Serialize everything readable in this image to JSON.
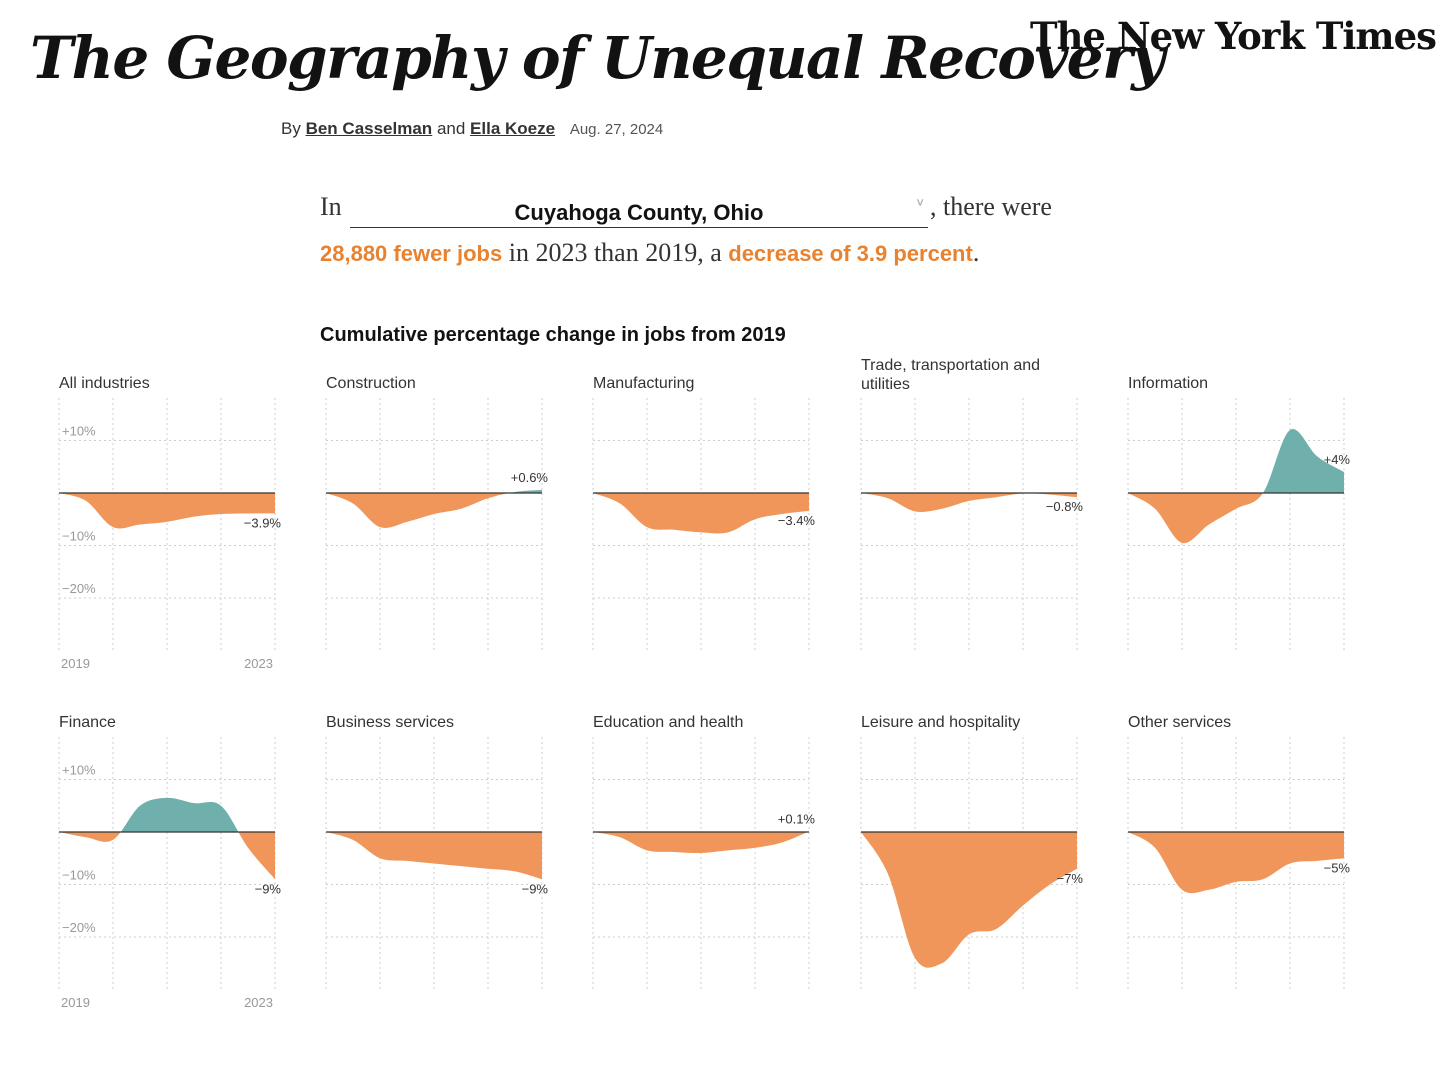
{
  "header": {
    "headline": "The Geography of Unequal Recovery",
    "masthead": "The New York Times",
    "byline_prefix": "By",
    "author1": "Ben Casselman",
    "byline_and": "and",
    "author2": "Ella Koeze",
    "date": "Aug. 27, 2024"
  },
  "lede": {
    "in_text": "In",
    "county": "Cuyahoga County, Ohio",
    "chevron": "˅",
    "after_select": ", there were",
    "jobs_highlight": "28,880 fewer jobs",
    "middle": " in 2023 than 2019, a ",
    "pct_highlight": "decrease of 3.9 percent",
    "end": "."
  },
  "colors": {
    "negative": "#f0965a",
    "positive": "#6fb0ac",
    "highlight": "#e8822f",
    "zero_line": "#333333",
    "grid": "#cccccc"
  },
  "chart_data": {
    "type": "area",
    "title": "Cumulative percentage change in jobs from 2019",
    "x": [
      2019,
      2019.5,
      2020,
      2020.5,
      2021,
      2021.5,
      2022,
      2022.5,
      2023
    ],
    "x_tick_labels": [
      "2019",
      "2023"
    ],
    "y_tick_labels": [
      "+10%",
      "−10%",
      "−20%"
    ],
    "ylim": [
      -30,
      18
    ],
    "grid": true,
    "series": [
      {
        "name": "All industries",
        "values": [
          0,
          -1.5,
          -6.5,
          -6.0,
          -5.5,
          -4.5,
          -4.0,
          -3.9,
          -3.9
        ],
        "end_label": "−3.9%"
      },
      {
        "name": "Construction",
        "values": [
          0,
          -2.0,
          -6.5,
          -5.5,
          -4.0,
          -3.0,
          -1.0,
          0.2,
          0.6
        ],
        "end_label": "+0.6%"
      },
      {
        "name": "Manufacturing",
        "values": [
          0,
          -2.0,
          -6.5,
          -7.0,
          -7.5,
          -7.5,
          -5.0,
          -4.0,
          -3.4
        ],
        "end_label": "−3.4%"
      },
      {
        "name": "Trade, transportation and utilities",
        "values": [
          0,
          -1.0,
          -3.5,
          -3.0,
          -1.5,
          -0.8,
          -0.1,
          -0.3,
          -0.8
        ],
        "end_label": "−0.8%"
      },
      {
        "name": "Information",
        "values": [
          0,
          -3.0,
          -9.5,
          -6.0,
          -3.0,
          0,
          12.0,
          7.0,
          4.0
        ],
        "end_label": "+4%"
      },
      {
        "name": "Finance",
        "values": [
          0,
          -1.0,
          -1.5,
          5.0,
          6.5,
          5.5,
          5.0,
          -3.0,
          -9.0
        ],
        "end_label": "−9%"
      },
      {
        "name": "Business services",
        "values": [
          0,
          -1.5,
          -5.0,
          -5.5,
          -6.0,
          -6.5,
          -7.0,
          -7.5,
          -9.0
        ],
        "end_label": "−9%"
      },
      {
        "name": "Education and health",
        "values": [
          0,
          -1.0,
          -3.5,
          -3.8,
          -4.0,
          -3.5,
          -3.0,
          -2.0,
          0.1
        ],
        "end_label": "+0.1%"
      },
      {
        "name": "Leisure and hospitality",
        "values": [
          0,
          -8.0,
          -24.0,
          -25.0,
          -19.5,
          -18.5,
          -14.0,
          -10.0,
          -7.0
        ],
        "end_label": "−7%"
      },
      {
        "name": "Other services",
        "values": [
          0,
          -3.0,
          -11.0,
          -11.0,
          -9.5,
          -9.0,
          -6.0,
          -5.5,
          -5.0
        ],
        "end_label": "−5%"
      }
    ]
  }
}
